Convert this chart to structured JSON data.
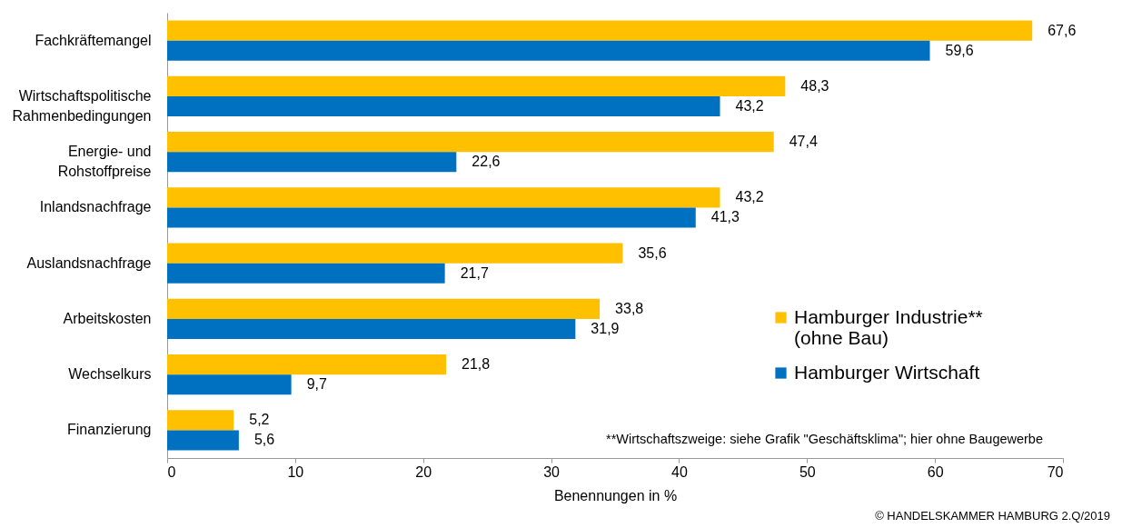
{
  "chart_data": {
    "type": "bar",
    "orientation": "horizontal",
    "xlabel": "Benennungen  in %",
    "categories": [
      "Fachkräftemangel",
      "Wirtschaftspolitische\nRahmenbedingungen",
      "Energie- und\nRohstoffpreise",
      "Inlandsnachfrage",
      "Auslandsnachfrage",
      "Arbeitskosten",
      "Wechselkurs",
      "Finanzierung"
    ],
    "series": [
      {
        "name": "Hamburger Industrie**\n(ohne Bau)",
        "color": "#ffc000",
        "values": [
          67.6,
          48.3,
          47.4,
          43.2,
          35.6,
          33.8,
          21.8,
          5.2
        ],
        "value_labels": [
          "67,6",
          "48,3",
          "47,4",
          "43,2",
          "35,6",
          "33,8",
          "21,8",
          "5,2"
        ]
      },
      {
        "name": "Hamburger Wirtschaft",
        "color": "#0070c0",
        "values": [
          59.6,
          43.2,
          22.6,
          41.3,
          21.7,
          31.9,
          9.7,
          5.6
        ],
        "value_labels": [
          "59,6",
          "43,2",
          "22,6",
          "41,3",
          "21,7",
          "31,9",
          "9,7",
          "5,6"
        ]
      }
    ],
    "xlim": [
      0,
      70
    ],
    "xticks": [
      0,
      10,
      20,
      30,
      40,
      50,
      60,
      70
    ],
    "grid": false,
    "legend": "bottom right",
    "marker": "square",
    "annotations": [
      "**Wirtschaftszweige: siehe Grafik \"Geschäftsklima\"; hier ohne Baugewerbe",
      "© HANDELSKAMMER HAMBURG 2.Q/2019"
    ]
  }
}
